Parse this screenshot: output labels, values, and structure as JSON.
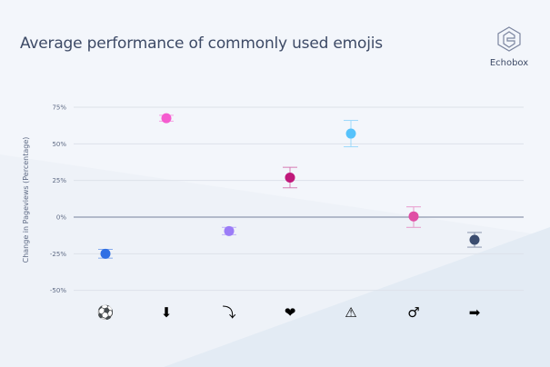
{
  "title": "Average performance of commonly used emojis",
  "logo": {
    "text": "Echobox"
  },
  "chart_data": {
    "type": "scatter",
    "title": "Average performance of commonly used emojis",
    "xlabel": "",
    "ylabel": "Change in Pageviews (Percentage)",
    "ylim": [
      -50,
      75
    ],
    "yticks": [
      75,
      50,
      25,
      0,
      -25,
      -50
    ],
    "ytick_labels": [
      "75%",
      "50%",
      "25%",
      "0%",
      "-25%",
      "-50%"
    ],
    "grid": true,
    "categories": [
      "⚽",
      "⬇",
      "⤵",
      "❤",
      "⚠",
      "♂",
      "➡"
    ],
    "category_icons": [
      "soccer-ball-icon",
      "down-arrow-button-icon",
      "curved-down-arrow-icon",
      "red-heart-icon",
      "warning-icon",
      "male-sign-icon",
      "right-arrow-button-icon"
    ],
    "values": [
      -25,
      67.5,
      -9.5,
      27,
      57,
      0.5,
      -15.5
    ],
    "error_low": [
      -28,
      65.5,
      -12,
      20,
      48,
      -7,
      -20.5
    ],
    "error_high": [
      -22,
      69.5,
      -7,
      34,
      66,
      7,
      -10.5
    ],
    "colors": [
      "#2f6fe4",
      "#f55ccf",
      "#9b7cf7",
      "#c0197b",
      "#56c2fb",
      "#e04fa5",
      "#3b4d70"
    ]
  }
}
